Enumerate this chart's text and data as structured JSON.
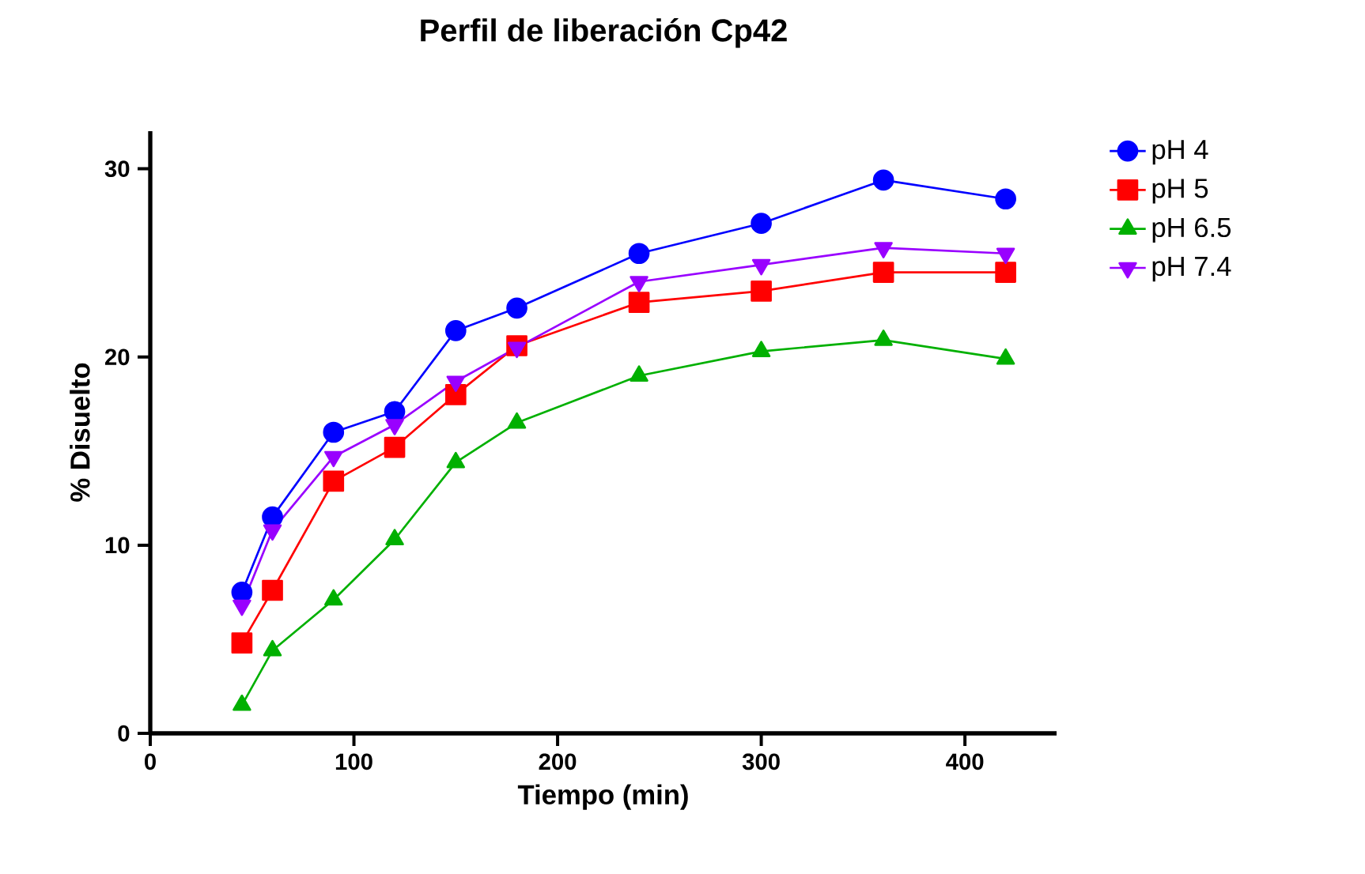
{
  "chart_data": {
    "type": "line",
    "title": "Perfil de liberación Cp42",
    "xlabel": "Tiempo (min)",
    "ylabel": "% Disuelto",
    "x": [
      45,
      60,
      90,
      120,
      150,
      180,
      240,
      300,
      360,
      420
    ],
    "series": [
      {
        "name": "pH 4",
        "color": "#0000ff",
        "marker": "circle",
        "values": [
          7.5,
          11.5,
          16.0,
          17.1,
          21.4,
          22.6,
          25.5,
          27.1,
          29.4,
          28.4
        ]
      },
      {
        "name": "pH 5",
        "color": "#ff0000",
        "marker": "square",
        "values": [
          4.8,
          7.6,
          13.4,
          15.2,
          18.0,
          20.6,
          22.9,
          23.5,
          24.5,
          24.5
        ]
      },
      {
        "name": "pH 6.5",
        "color": "#00b000",
        "marker": "triangle",
        "values": [
          1.5,
          4.4,
          7.1,
          10.3,
          14.4,
          16.5,
          19.0,
          20.3,
          20.9,
          19.9
        ]
      },
      {
        "name": "pH 7.4",
        "color": "#9900ff",
        "marker": "triangle-down",
        "values": [
          6.8,
          10.8,
          14.7,
          16.4,
          18.7,
          20.5,
          24.0,
          24.9,
          25.8,
          25.5
        ]
      }
    ],
    "xlim": [
      0,
      445
    ],
    "ylim": [
      0,
      32
    ],
    "xticks": [
      0,
      100,
      200,
      300,
      400
    ],
    "yticks": [
      0,
      10,
      20,
      30
    ],
    "grid": false,
    "legend": "top right",
    "line_style": "solid"
  }
}
